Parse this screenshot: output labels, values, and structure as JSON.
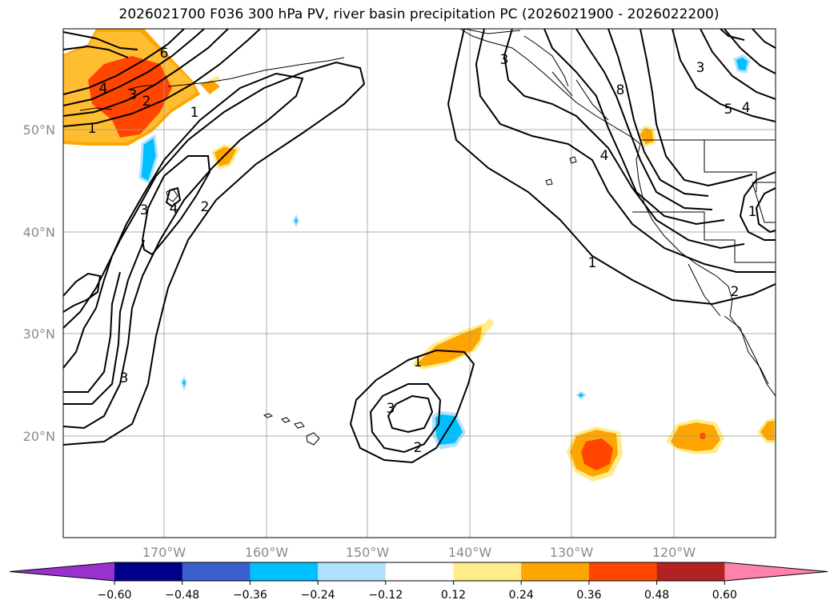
{
  "title": "2026021700 F036 300 hPa PV, river basin precipitation PC (2026021900 - 2026022200)",
  "axes": {
    "lon_ticks": [
      "170°W",
      "160°W",
      "150°W",
      "140°W",
      "130°W",
      "120°W"
    ],
    "lat_ticks": [
      "50°N",
      "40°N",
      "30°N",
      "20°N"
    ]
  },
  "colorbar": {
    "ticks": [
      "−0.60",
      "−0.48",
      "−0.36",
      "−0.24",
      "−0.12",
      "0.12",
      "0.24",
      "0.36",
      "0.48",
      "0.60"
    ],
    "colors": [
      "#9932cc",
      "#00008b",
      "#3a5fcd",
      "#00bfff",
      "#b0e2ff",
      "#ffffff",
      "#ffec8b",
      "#ffa500",
      "#ff4500",
      "#b22222",
      "#ff82ab"
    ]
  },
  "contour_labels": [
    "1",
    "2",
    "3",
    "4",
    "5",
    "6",
    "8"
  ]
}
